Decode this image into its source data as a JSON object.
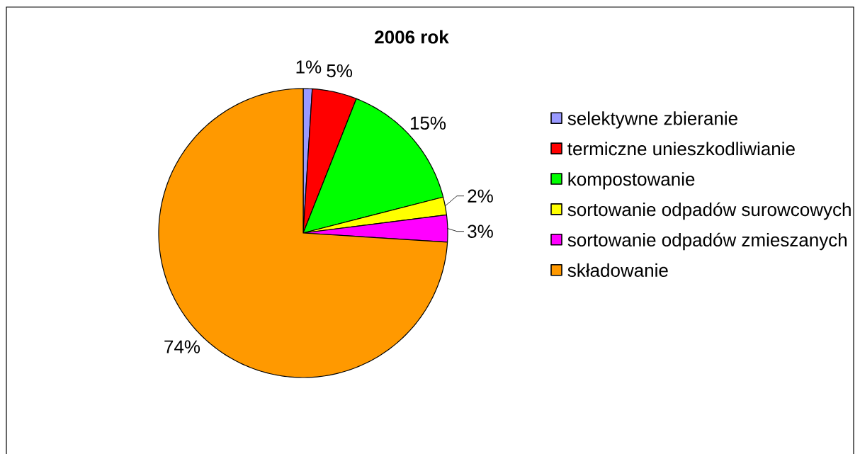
{
  "chart_data": {
    "type": "pie",
    "title": "2006 rok",
    "categories": [
      "selektywne zbieranie",
      "termiczne unieszkodliwianie",
      "kompostowanie",
      "sortowanie odpadów surowcowych",
      "sortowanie odpadów zmieszanych",
      "składowanie"
    ],
    "values": [
      1,
      5,
      15,
      2,
      3,
      74
    ],
    "colors": [
      "#9999ff",
      "#ff0000",
      "#00ff00",
      "#ffff00",
      "#ff00ff",
      "#ff9900"
    ],
    "value_labels": [
      "1%",
      "5%",
      "15%",
      "2%",
      "3%",
      "74%"
    ],
    "legend": "right"
  }
}
